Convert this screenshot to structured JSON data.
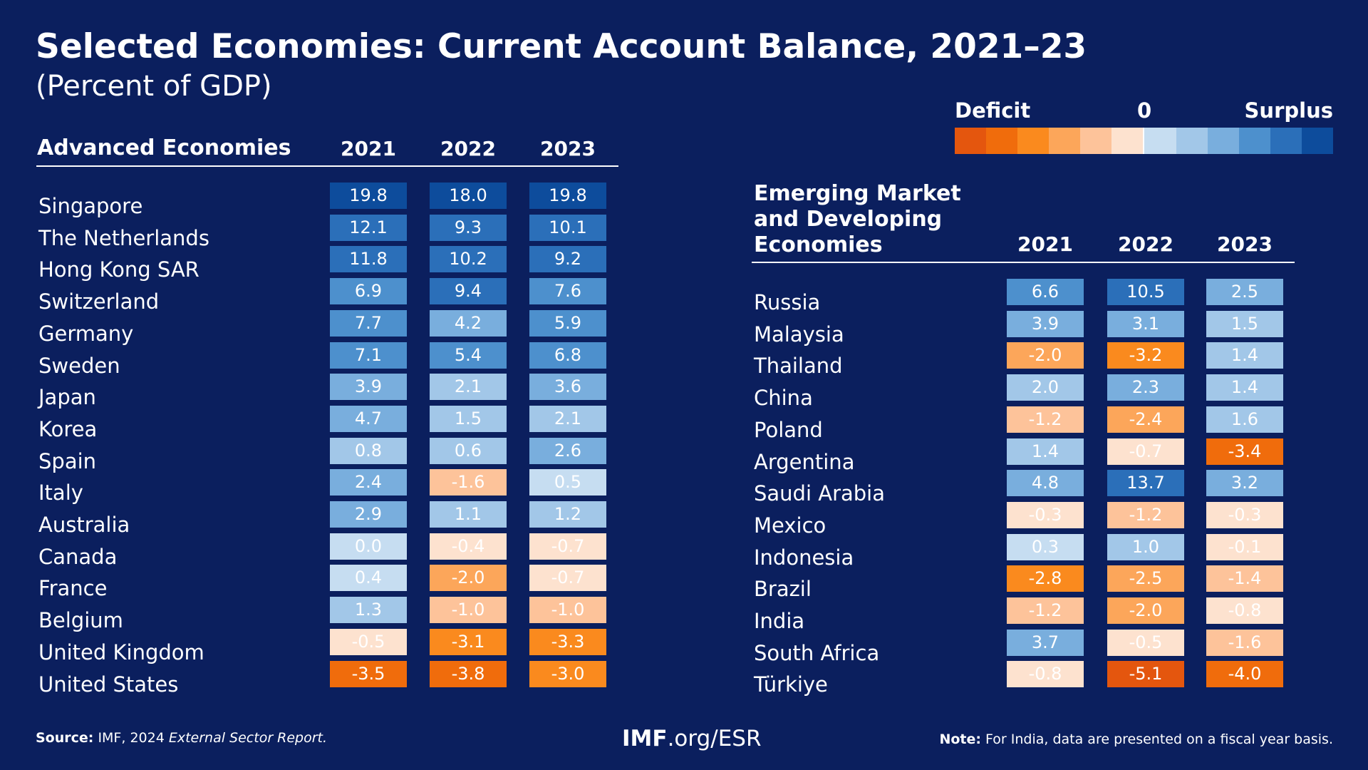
{
  "header": {
    "title": "Selected Economies: Current Account Balance, 2021–23",
    "subtitle": "(Percent of GDP)"
  },
  "legend": {
    "deficit": "Deficit",
    "zero": "0",
    "surplus": "Surplus",
    "deficit_colors": [
      "#e4560e",
      "#f06c0c",
      "#fa8a1e",
      "#fca65a",
      "#fdc39a",
      "#fde2cf"
    ],
    "surplus_colors": [
      "#c6ddf1",
      "#a2c7e8",
      "#79aedd",
      "#4d90cd",
      "#2b6fb9",
      "#0d4c9c"
    ]
  },
  "tables": [
    {
      "title": "Advanced Economies",
      "columns": [
        "2021",
        "2022",
        "2023"
      ],
      "rows": [
        [
          "Singapore",
          "19.8",
          "18.0",
          "19.8"
        ],
        [
          "The Netherlands",
          "12.1",
          "9.3",
          "10.1"
        ],
        [
          "Hong Kong SAR",
          "11.8",
          "10.2",
          "9.2"
        ],
        [
          "Switzerland",
          "6.9",
          "9.4",
          "7.6"
        ],
        [
          "Germany",
          "7.7",
          "4.2",
          "5.9"
        ],
        [
          "Sweden",
          "7.1",
          "5.4",
          "6.8"
        ],
        [
          "Japan",
          "3.9",
          "2.1",
          "3.6"
        ],
        [
          "Korea",
          "4.7",
          "1.5",
          "2.1"
        ],
        [
          "Spain",
          "0.8",
          "0.6",
          "2.6"
        ],
        [
          "Italy",
          "2.4",
          "-1.6",
          "0.5"
        ],
        [
          "Australia",
          "2.9",
          "1.1",
          "1.2"
        ],
        [
          "Canada",
          "0.0",
          "-0.4",
          "-0.7"
        ],
        [
          "France",
          "0.4",
          "-2.0",
          "-0.7"
        ],
        [
          "Belgium",
          "1.3",
          "-1.0",
          "-1.0"
        ],
        [
          "United Kingdom",
          "-0.5",
          "-3.1",
          "-3.3"
        ],
        [
          "United States",
          "-3.5",
          "-3.8",
          "-3.0"
        ]
      ]
    },
    {
      "title": [
        "Emerging Market",
        "and Developing",
        "Economies"
      ],
      "columns": [
        "2021",
        "2022",
        "2023"
      ],
      "rows": [
        [
          "Russia",
          "6.6",
          "10.5",
          "2.5"
        ],
        [
          "Malaysia",
          "3.9",
          "3.1",
          "1.5"
        ],
        [
          "Thailand",
          "-2.0",
          "-3.2",
          "1.4"
        ],
        [
          "China",
          "2.0",
          "2.3",
          "1.4"
        ],
        [
          "Poland",
          "-1.2",
          "-2.4",
          "1.6"
        ],
        [
          "Argentina",
          "1.4",
          "-0.7",
          "-3.4"
        ],
        [
          "Saudi Arabia",
          "4.8",
          "13.7",
          "3.2"
        ],
        [
          "Mexico",
          "-0.3",
          "-1.2",
          "-0.3"
        ],
        [
          "Indonesia",
          "0.3",
          "1.0",
          "-0.1"
        ],
        [
          "Brazil",
          "-2.8",
          "-2.5",
          "-1.4"
        ],
        [
          "India",
          "-1.2",
          "-2.0",
          "-0.8"
        ],
        [
          "South Africa",
          "3.7",
          "-0.5",
          "-1.6"
        ],
        [
          "Türkiye",
          "-0.8",
          "-5.1",
          "-4.0"
        ]
      ]
    }
  ],
  "footer": {
    "source_label": "Source:",
    "source_text": "IMF, 2024",
    "source_italic": "External Sector Report.",
    "link_bold": "IMF",
    "link_rest": ".org/ESR",
    "note_label": "Note:",
    "note_text": "For India, data are presented on a fiscal year basis."
  }
}
